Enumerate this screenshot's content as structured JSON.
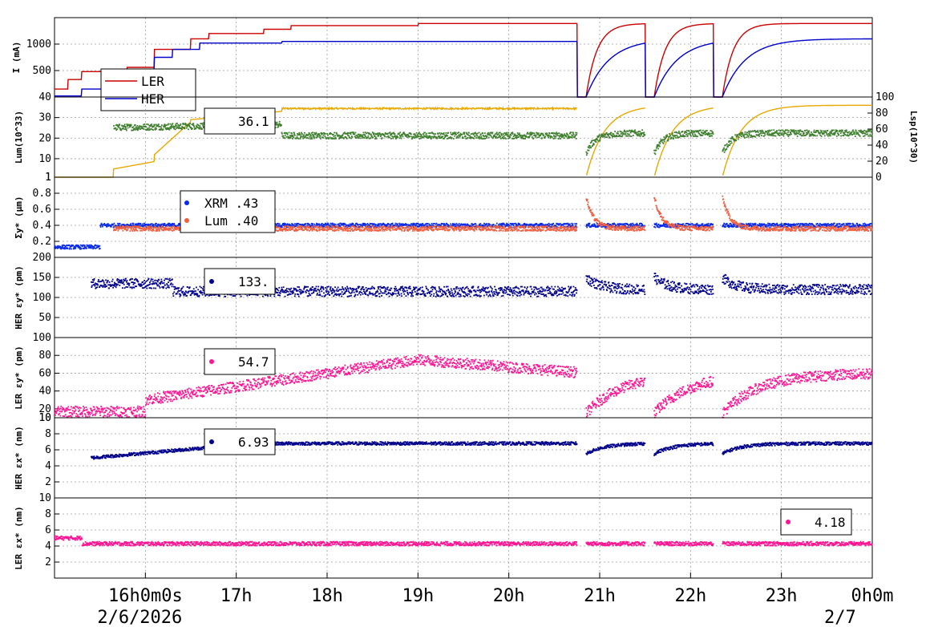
{
  "chart_data": {
    "type": "line",
    "x_axis": {
      "range_hours": [
        15.0,
        24.0
      ],
      "ticks": [
        {
          "t": 16,
          "label": "16h0m0s"
        },
        {
          "t": 17,
          "label": "17h"
        },
        {
          "t": 18,
          "label": "18h"
        },
        {
          "t": 19,
          "label": "19h"
        },
        {
          "t": 20,
          "label": "20h"
        },
        {
          "t": 21,
          "label": "21h"
        },
        {
          "t": 22,
          "label": "22h"
        },
        {
          "t": 23,
          "label": "23h"
        },
        {
          "t": 24,
          "label": "0h0m"
        }
      ],
      "date_labels": [
        {
          "t": 16,
          "label": "2/6/2026"
        },
        {
          "t": 24,
          "label": "2/7"
        }
      ]
    },
    "fills": [
      {
        "start": 15.0,
        "end": 20.75
      },
      {
        "start": 20.85,
        "end": 21.5
      },
      {
        "start": 21.6,
        "end": 22.25
      },
      {
        "start": 22.35,
        "end": 24.0
      }
    ],
    "panels": [
      {
        "id": "current",
        "ylabel": "I (mA)",
        "ylim": [
          0,
          1500
        ],
        "yticks": [
          500,
          1000
        ],
        "legend": {
          "entries": [
            {
              "label": "LER",
              "color": "#cc0000"
            },
            {
              "label": "HER",
              "color": "#0000cc"
            }
          ]
        },
        "series": [
          {
            "name": "LER",
            "color": "#cc0000",
            "style": "line",
            "profile": "current_ler"
          },
          {
            "name": "HER",
            "color": "#0000cc",
            "style": "line",
            "profile": "current_her"
          }
        ]
      },
      {
        "id": "lum",
        "ylabel": "Lum(10^33)",
        "ylim": [
          1,
          40
        ],
        "yticks": [
          1,
          10,
          20,
          30,
          40
        ],
        "y2label": "Lsp(10^30)",
        "y2lim": [
          0,
          100
        ],
        "y2ticks": [
          0,
          20,
          40,
          60,
          80,
          100
        ],
        "legend": {
          "text": "36.1"
        },
        "series": [
          {
            "name": "Lum",
            "color": "#e8a800",
            "style": "line",
            "profile": "lum"
          },
          {
            "name": "Lsp",
            "color": "#3f7f2f",
            "style": "dots",
            "profile": "lsp"
          }
        ]
      },
      {
        "id": "sigma",
        "ylabel": "Σy* (μm)",
        "ylim": [
          0,
          1.0
        ],
        "yticks": [
          0.2,
          0.4,
          0.6,
          0.8,
          1.0
        ],
        "ytick_labels": [
          "0.2",
          "0.4",
          "0.6",
          "0.8",
          "1"
        ],
        "legend": {
          "entries": [
            {
              "label": "XRM  .43",
              "color": "#0a2be8"
            },
            {
              "label": "Lum  .40",
              "color": "#f06040"
            }
          ]
        },
        "series": [
          {
            "name": "XRM",
            "color": "#0a2be8",
            "style": "dots",
            "profile": "sig_xrm"
          },
          {
            "name": "Lum",
            "color": "#f06040",
            "style": "dots",
            "profile": "sig_lum"
          }
        ]
      },
      {
        "id": "her_ey",
        "ylabel": "HER εy* (pm)",
        "ylim": [
          0,
          200
        ],
        "yticks": [
          50,
          100,
          150,
          200
        ],
        "legend": {
          "text": "133.",
          "color": "#00008b"
        },
        "series": [
          {
            "name": "HER εy",
            "color": "#00008b",
            "style": "dots",
            "profile": "her_ey"
          }
        ]
      },
      {
        "id": "ler_ey",
        "ylabel": "LER εy* (pm)",
        "ylim": [
          10,
          100
        ],
        "yticks": [
          10,
          20,
          40,
          60,
          80,
          100
        ],
        "legend": {
          "text": "54.7",
          "color": "#ff1493"
        },
        "series": [
          {
            "name": "LER εy",
            "color": "#ff1493",
            "style": "dots",
            "profile": "ler_ey"
          }
        ]
      },
      {
        "id": "her_ex",
        "ylabel": "HER εx* (nm)",
        "ylim": [
          0,
          10
        ],
        "yticks": [
          2,
          4,
          6,
          8,
          10
        ],
        "legend": {
          "text": "6.93",
          "color": "#00008b"
        },
        "series": [
          {
            "name": "HER εx",
            "color": "#00008b",
            "style": "dots",
            "profile": "her_ex"
          }
        ]
      },
      {
        "id": "ler_ex",
        "ylabel": "LER εx* (nm)",
        "ylim": [
          0,
          10
        ],
        "yticks": [
          2,
          4,
          6,
          8,
          10
        ],
        "legend": {
          "text": "4.18",
          "color": "#ff1493"
        },
        "series": [
          {
            "name": "LER εx",
            "color": "#ff1493",
            "style": "dots",
            "profile": "ler_ex"
          }
        ]
      }
    ]
  }
}
